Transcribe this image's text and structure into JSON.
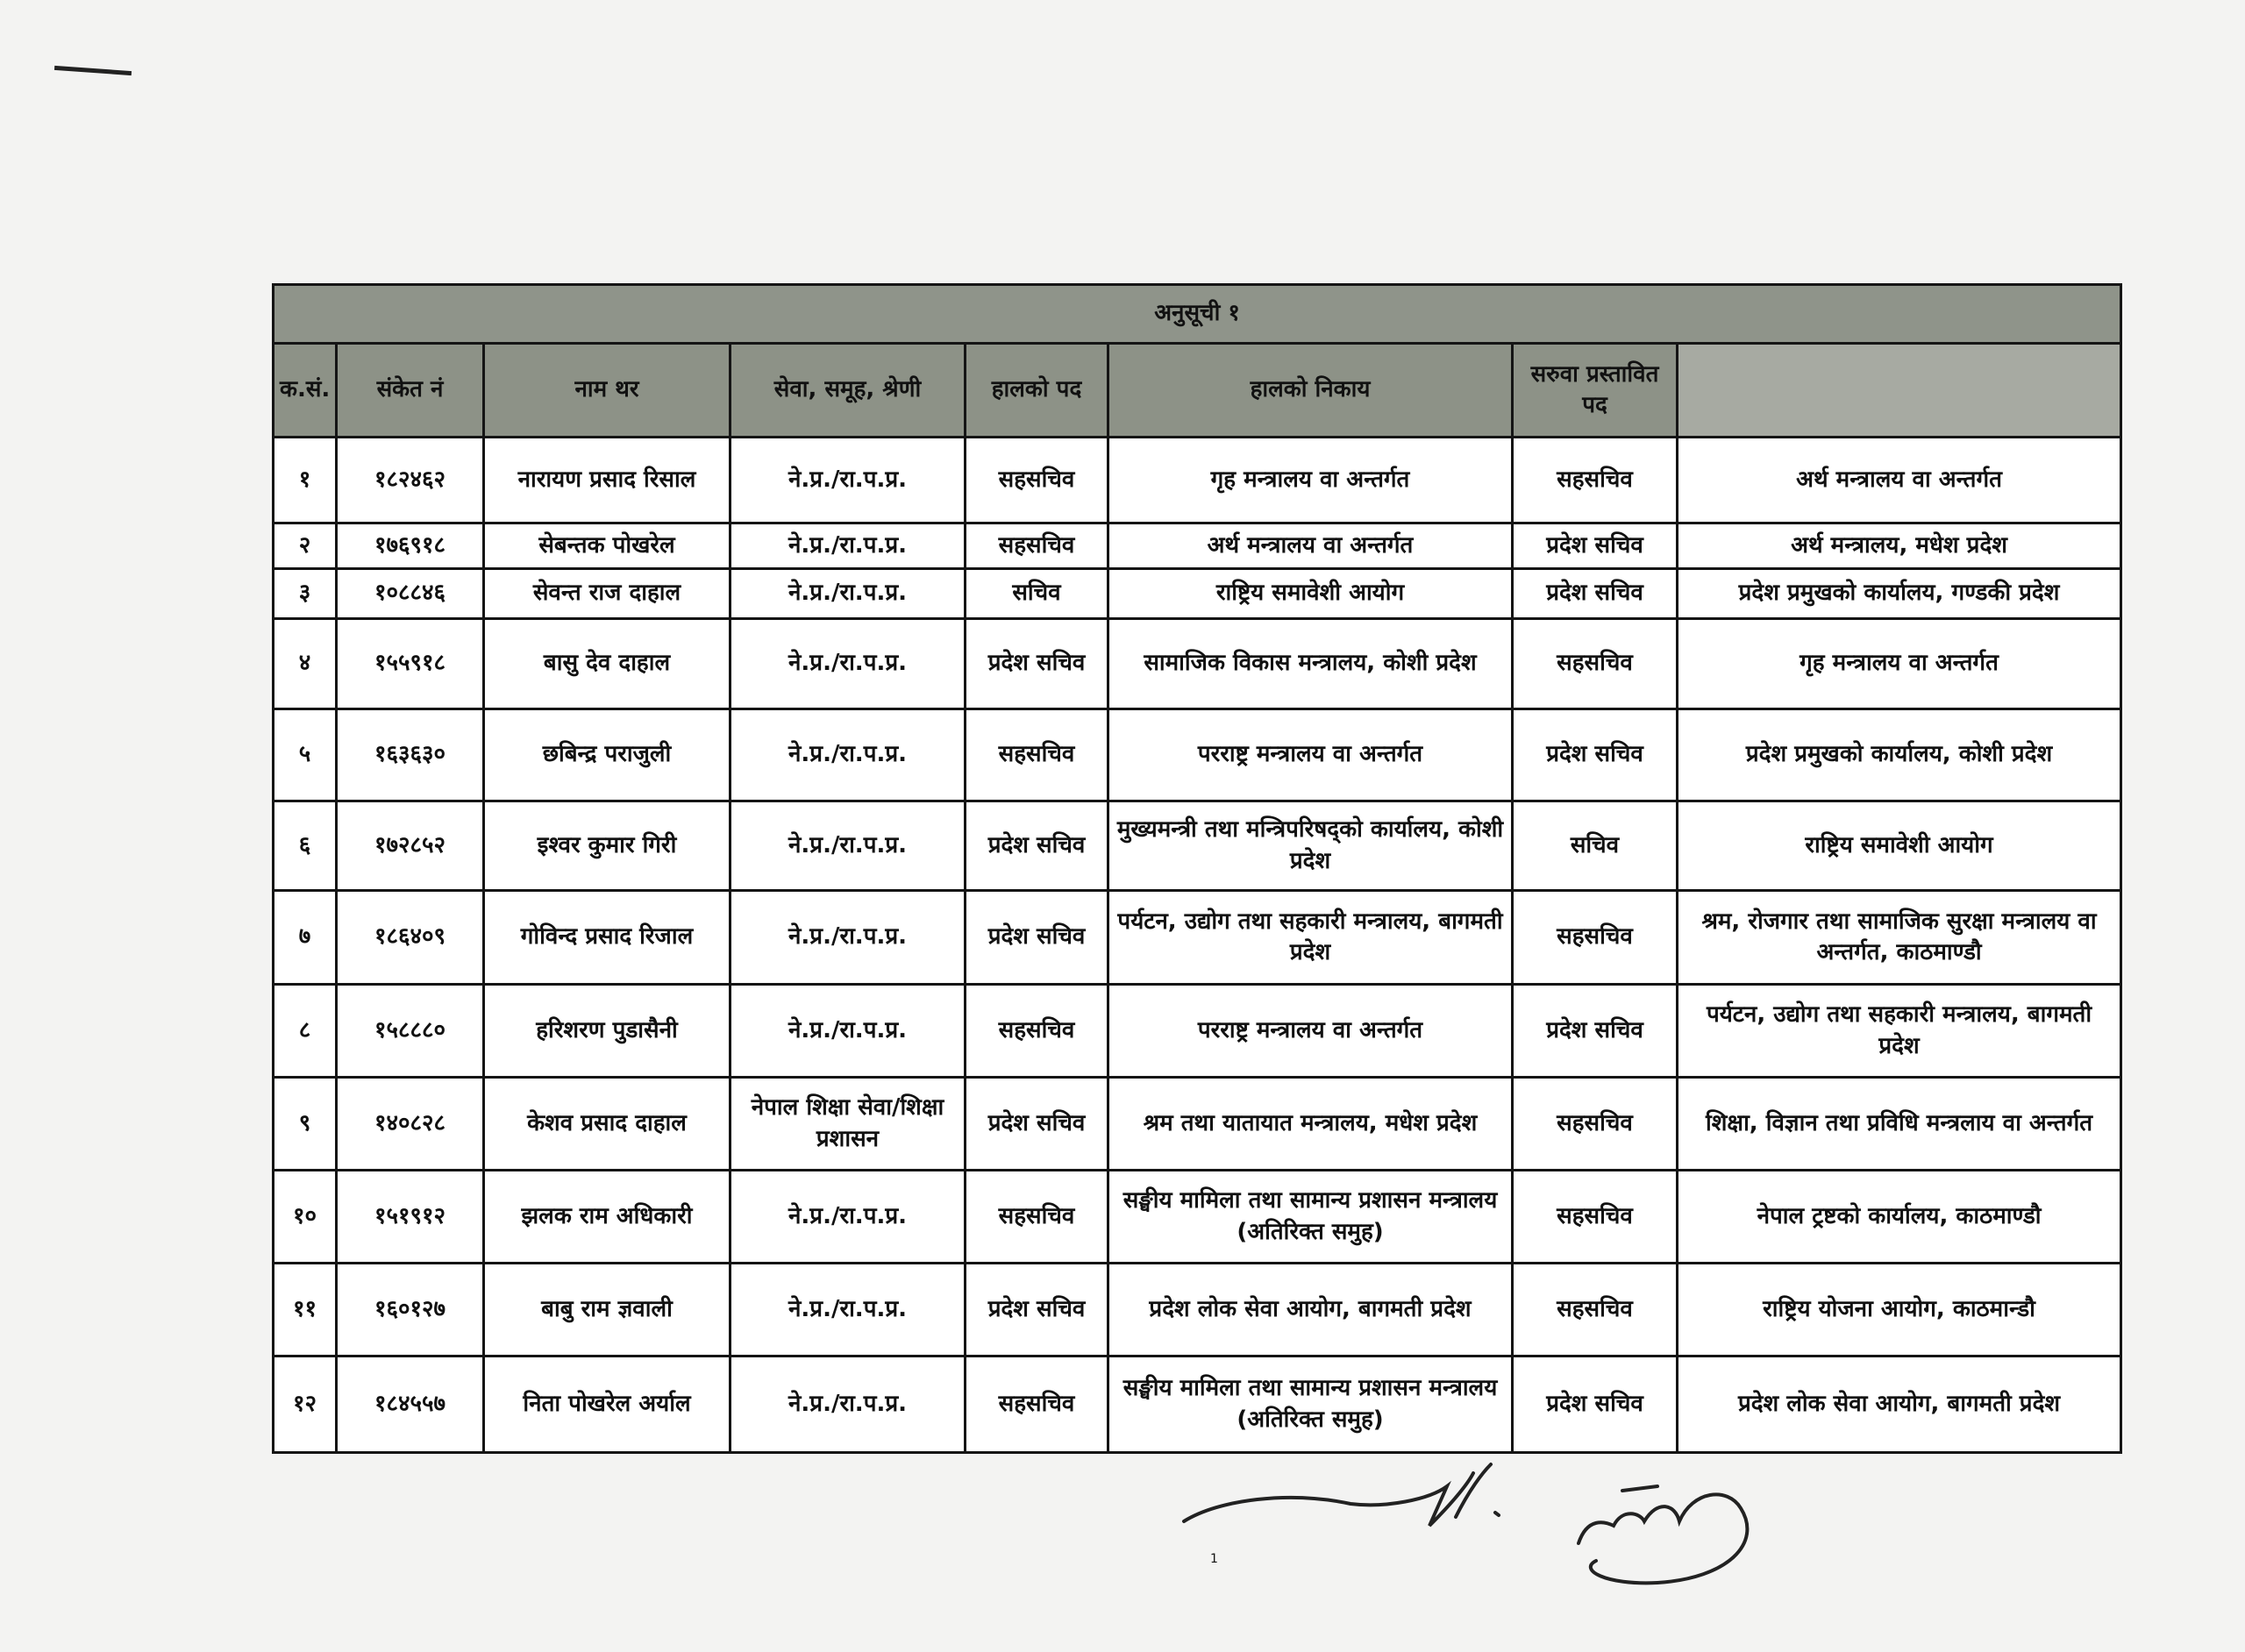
{
  "table": {
    "caption": "अनुसूची १",
    "headers": [
      "क.सं.",
      "संकेत नं",
      "नाम थर",
      "सेवा, समूह, श्रेणी",
      "हालको पद",
      "हालको निकाय",
      "सरुवा प्रस्तावित पद",
      ""
    ],
    "rows": [
      [
        "१",
        "१८२४६२",
        "नारायण प्रसाद रिसाल",
        "ने.प्र./रा.प.प्र.",
        "सहसचिव",
        "गृह मन्त्रालय वा अन्तर्गत",
        "सहसचिव",
        "अर्थ मन्त्रालय वा अन्तर्गत"
      ],
      [
        "२",
        "१७६९१८",
        "सेबन्तक पोखरेल",
        "ने.प्र./रा.प.प्र.",
        "सहसचिव",
        "अर्थ मन्त्रालय वा अन्तर्गत",
        "प्रदेश सचिव",
        "अर्थ मन्त्रालय, मधेश प्रदेश"
      ],
      [
        "३",
        "१०८८४६",
        "सेवन्त राज दाहाल",
        "ने.प्र./रा.प.प्र.",
        "सचिव",
        "राष्ट्रिय समावेशी आयोग",
        "प्रदेश सचिव",
        "प्रदेश प्रमुखको कार्यालय, गण्डकी प्रदेश"
      ],
      [
        "४",
        "१५५९१८",
        "बासु देव दाहाल",
        "ने.प्र./रा.प.प्र.",
        "प्रदेश सचिव",
        "सामाजिक विकास मन्त्रालय, कोशी प्रदेश",
        "सहसचिव",
        "गृह मन्त्रालय वा अन्तर्गत"
      ],
      [
        "५",
        "१६३६३०",
        "छबिन्द्र पराजुली",
        "ने.प्र./रा.प.प्र.",
        "सहसचिव",
        "परराष्ट्र मन्त्रालय वा अन्तर्गत",
        "प्रदेश सचिव",
        "प्रदेश प्रमुखको कार्यालय, कोशी प्रदेश"
      ],
      [
        "६",
        "१७२८५२",
        "इश्वर कुमार गिरी",
        "ने.प्र./रा.प.प्र.",
        "प्रदेश सचिव",
        "मुख्यमन्त्री तथा मन्त्रिपरिषद्को कार्यालय, कोशी प्रदेश",
        "सचिव",
        "राष्ट्रिय समावेशी आयोग"
      ],
      [
        "७",
        "१८६४०९",
        "गोविन्द प्रसाद रिजाल",
        "ने.प्र./रा.प.प्र.",
        "प्रदेश सचिव",
        "पर्यटन, उद्योग तथा सहकारी मन्त्रालय, बागमती प्रदेश",
        "सहसचिव",
        "श्रम, रोजगार तथा सामाजिक सुरक्षा मन्त्रालय वा अन्तर्गत, काठमाण्डौ"
      ],
      [
        "८",
        "१५८८८०",
        "हरिशरण पुडासैनी",
        "ने.प्र./रा.प.प्र.",
        "सहसचिव",
        "परराष्ट्र मन्त्रालय वा अन्तर्गत",
        "प्रदेश सचिव",
        "पर्यटन, उद्योग तथा सहकारी मन्त्रालय, बागमती प्रदेश"
      ],
      [
        "९",
        "१४०८२८",
        "केशव प्रसाद दाहाल",
        "नेपाल शिक्षा सेवा/शिक्षा प्रशासन",
        "प्रदेश सचिव",
        "श्रम तथा यातायात मन्त्रालय, मधेश प्रदेश",
        "सहसचिव",
        "शिक्षा, विज्ञान तथा प्रविधि मन्त्रलाय वा अन्तर्गत"
      ],
      [
        "१०",
        "१५१९१२",
        "झलक राम अधिकारी",
        "ने.प्र./रा.प.प्र.",
        "सहसचिव",
        "सङ्घीय मामिला तथा सामान्य प्रशासन मन्त्रालय (अतिरिक्त समुह)",
        "सहसचिव",
        "नेपाल ट्रष्टको कार्यालय, काठमाण्डौ"
      ],
      [
        "११",
        "१६०१२७",
        "बाबु राम ज्ञवाली",
        "ने.प्र./रा.प.प्र.",
        "प्रदेश सचिव",
        "प्रदेश लोक सेवा आयोग, बागमती  प्रदेश",
        "सहसचिव",
        "राष्ट्रिय योजना आयोग, काठमान्डौ"
      ],
      [
        "१२",
        "१८४५५७",
        "निता पोखरेल अर्याल",
        "ने.प्र./रा.प.प्र.",
        "सहसचिव",
        "सङ्घीय मामिला तथा सामान्य प्रशासन मन्त्रालय (अतिरिक्त समुह)",
        "प्रदेश सचिव",
        "प्रदेश लोक सेवा आयोग, बागमती  प्रदेश"
      ]
    ]
  },
  "page_number": "1",
  "colors": {
    "header_bg": "#8d9287",
    "border": "#151515",
    "paper": "#f3f3f2"
  }
}
